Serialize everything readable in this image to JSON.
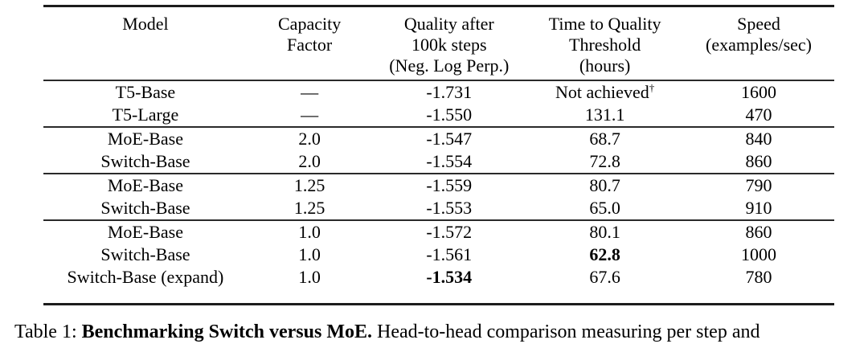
{
  "table": {
    "header": {
      "model": [
        "Model"
      ],
      "capacity": [
        "Capacity",
        "Factor"
      ],
      "quality": [
        "Quality after",
        "100k steps",
        "(Neg. Log Perp.)"
      ],
      "time": [
        "Time to Quality",
        "Threshold",
        "(hours)"
      ],
      "speed": [
        "Speed",
        "(examples/sec)"
      ]
    },
    "rows": [
      {
        "model": "T5-Base",
        "capacity": "—",
        "quality": "-1.731",
        "time": "Not achieved",
        "time_sup": "†",
        "speed": "1600"
      },
      {
        "model": "T5-Large",
        "capacity": "—",
        "quality": "-1.550",
        "time": "131.1",
        "speed": "470"
      },
      {
        "model": "MoE-Base",
        "capacity": "2.0",
        "quality": "-1.547",
        "time": "68.7",
        "speed": "840"
      },
      {
        "model": "Switch-Base",
        "capacity": "2.0",
        "quality": "-1.554",
        "time": "72.8",
        "speed": "860"
      },
      {
        "model": "MoE-Base",
        "capacity": "1.25",
        "quality": "-1.559",
        "time": "80.7",
        "speed": "790"
      },
      {
        "model": "Switch-Base",
        "capacity": "1.25",
        "quality": "-1.553",
        "time": "65.0",
        "speed": "910"
      },
      {
        "model": "MoE-Base",
        "capacity": "1.0",
        "quality": "-1.572",
        "time": "80.1",
        "speed": "860"
      },
      {
        "model": "Switch-Base",
        "capacity": "1.0",
        "quality": "-1.561",
        "time": "62.8",
        "speed": "1000"
      },
      {
        "model": "Switch-Base (expand)",
        "capacity": "1.0",
        "quality": "-1.534",
        "time": "67.6",
        "speed": "780"
      }
    ]
  },
  "caption": {
    "label": "Table 1:",
    "bold": "Benchmarking Switch versus MoE.",
    "text": "Head-to-head comparison measuring per step and"
  },
  "colors": {
    "rule": "#1c1c1c",
    "text": "#000000",
    "background": "#ffffff"
  }
}
